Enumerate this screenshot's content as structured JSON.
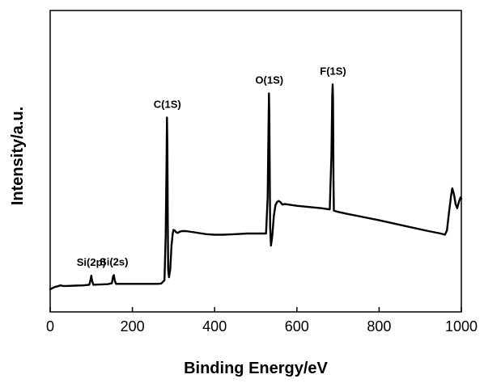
{
  "chart_data": {
    "type": "line",
    "title": "",
    "xlabel": "Binding Energy/eV",
    "ylabel": "Intensity/a.u.",
    "xlim": [
      0,
      1000
    ],
    "ylim": [
      0,
      100
    ],
    "xticks": [
      0,
      200,
      400,
      600,
      800,
      1000
    ],
    "show_yticks": false,
    "grid": false,
    "legend": "none",
    "colors": {
      "line": "#000000",
      "frame": "#000000"
    },
    "series": [
      {
        "x": [
          0,
          10,
          18,
          25,
          32,
          40,
          60,
          80,
          95,
          98,
          100,
          102,
          105,
          120,
          140,
          150,
          153,
          155,
          157,
          160,
          180,
          200,
          220,
          240,
          260,
          270,
          278,
          281,
          283,
          284,
          285,
          286,
          287,
          289,
          292,
          295,
          298,
          300,
          303,
          306,
          310,
          315,
          320,
          330,
          350,
          380,
          400,
          420,
          450,
          480,
          500,
          515,
          525,
          529,
          531,
          532,
          533,
          534,
          535,
          537,
          540,
          544,
          548,
          552,
          556,
          560,
          565,
          570,
          580,
          600,
          630,
          660,
          680,
          684,
          686,
          687,
          688,
          689,
          690,
          692,
          700,
          720,
          760,
          800,
          840,
          880,
          920,
          950,
          960,
          965,
          970,
          975,
          978,
          982,
          986,
          990,
          994,
          998,
          1000
        ],
        "y": [
          7.5,
          8.2,
          8.5,
          8.8,
          8.6,
          8.6,
          8.7,
          8.8,
          9.0,
          10.5,
          12.0,
          10.3,
          9.0,
          9.1,
          9.2,
          9.5,
          11.8,
          12.2,
          10.4,
          9.3,
          9.3,
          9.3,
          9.3,
          9.3,
          9.3,
          9.4,
          10.5,
          25.0,
          50.0,
          64.5,
          55.0,
          30.0,
          14.0,
          11.5,
          14.0,
          22.0,
          26.0,
          27.2,
          27.0,
          26.5,
          26.2,
          26.6,
          26.8,
          26.8,
          26.4,
          25.8,
          25.6,
          25.6,
          25.8,
          26.0,
          26.0,
          26.0,
          26.0,
          38.0,
          60.0,
          72.5,
          65.0,
          45.0,
          28.0,
          22.0,
          25.0,
          32.0,
          35.5,
          36.5,
          36.8,
          36.4,
          35.6,
          35.8,
          35.6,
          35.2,
          34.8,
          34.4,
          34.0,
          52.0,
          72.0,
          75.5,
          70.0,
          45.0,
          33.6,
          33.5,
          33.2,
          32.6,
          31.5,
          30.4,
          29.2,
          28.0,
          26.8,
          26.0,
          25.6,
          27.0,
          33.0,
          38.5,
          41.0,
          39.0,
          35.8,
          34.4,
          36.5,
          38.0,
          37.5
        ]
      }
    ],
    "annotations": [
      {
        "text": "Si(2p)",
        "x": 100,
        "y": 12.0
      },
      {
        "text": "Si(2s)",
        "x": 155,
        "y": 12.2
      },
      {
        "text": "C(1S)",
        "x": 285,
        "y": 64.5
      },
      {
        "text": "O(1S)",
        "x": 533,
        "y": 72.5
      },
      {
        "text": "F(1S)",
        "x": 688,
        "y": 75.5
      }
    ]
  }
}
